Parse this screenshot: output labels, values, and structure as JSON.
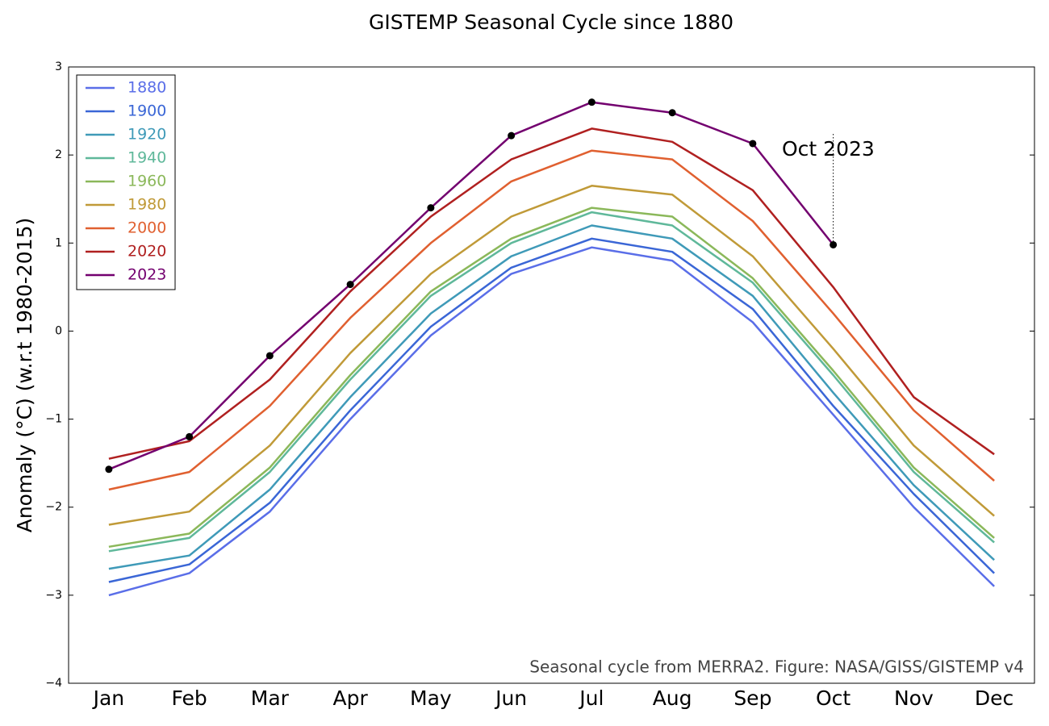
{
  "chart_data": {
    "type": "line",
    "title": "GISTEMP Seasonal Cycle since 1880",
    "y_label": "Anomaly (°C) (w.r.t 1980-2015)",
    "footnote": "Seasonal cycle from MERRA2. Figure: NASA/GISS/GISTEMP v4",
    "annotation": "Oct 2023",
    "categories": [
      "Jan",
      "Feb",
      "Mar",
      "Apr",
      "May",
      "Jun",
      "Jul",
      "Aug",
      "Sep",
      "Oct",
      "Nov",
      "Dec"
    ],
    "ylim": [
      -4,
      3
    ],
    "yticks": [
      {
        "value": -4,
        "label": "−4"
      },
      {
        "value": -3,
        "label": "−3"
      },
      {
        "value": -2,
        "label": "−2"
      },
      {
        "value": -1,
        "label": "−1"
      },
      0,
      1,
      2,
      3
    ],
    "legend": "upper left",
    "grid": false,
    "series": [
      {
        "name": "1880",
        "color": "#5a6ee8",
        "values": [
          -3.0,
          -2.75,
          -2.05,
          -1.0,
          -0.05,
          0.65,
          0.95,
          0.8,
          0.1,
          -0.95,
          -2.0,
          -2.9
        ]
      },
      {
        "name": "1900",
        "color": "#3a66d6",
        "values": [
          -2.85,
          -2.65,
          -1.95,
          -0.9,
          0.05,
          0.72,
          1.05,
          0.9,
          0.25,
          -0.85,
          -1.85,
          -2.75
        ]
      },
      {
        "name": "1920",
        "color": "#3f9ab8",
        "values": [
          -2.7,
          -2.55,
          -1.8,
          -0.75,
          0.2,
          0.85,
          1.2,
          1.05,
          0.4,
          -0.7,
          -1.75,
          -2.6
        ]
      },
      {
        "name": "1940",
        "color": "#5fb89a",
        "values": [
          -2.5,
          -2.35,
          -1.6,
          -0.55,
          0.4,
          1.0,
          1.35,
          1.2,
          0.55,
          -0.5,
          -1.6,
          -2.4
        ]
      },
      {
        "name": "1960",
        "color": "#8bb85a",
        "values": [
          -2.45,
          -2.3,
          -1.55,
          -0.5,
          0.45,
          1.05,
          1.4,
          1.3,
          0.6,
          -0.45,
          -1.55,
          -2.35
        ]
      },
      {
        "name": "1980",
        "color": "#c09a38",
        "values": [
          -2.2,
          -2.05,
          -1.3,
          -0.25,
          0.65,
          1.3,
          1.65,
          1.55,
          0.85,
          -0.2,
          -1.3,
          -2.1
        ]
      },
      {
        "name": "2000",
        "color": "#e06030",
        "values": [
          -1.8,
          -1.6,
          -0.85,
          0.15,
          1.0,
          1.7,
          2.05,
          1.95,
          1.25,
          0.2,
          -0.9,
          -1.7
        ]
      },
      {
        "name": "2020",
        "color": "#b02020",
        "values": [
          -1.45,
          -1.25,
          -0.55,
          0.45,
          1.3,
          1.95,
          2.3,
          2.15,
          1.6,
          0.5,
          -0.75,
          -1.4
        ]
      },
      {
        "name": "2023",
        "color": "#73006f",
        "markers": true,
        "values": [
          -1.57,
          -1.2,
          -0.28,
          0.53,
          1.4,
          2.22,
          2.6,
          2.48,
          2.13,
          0.98,
          null,
          null
        ]
      }
    ]
  }
}
